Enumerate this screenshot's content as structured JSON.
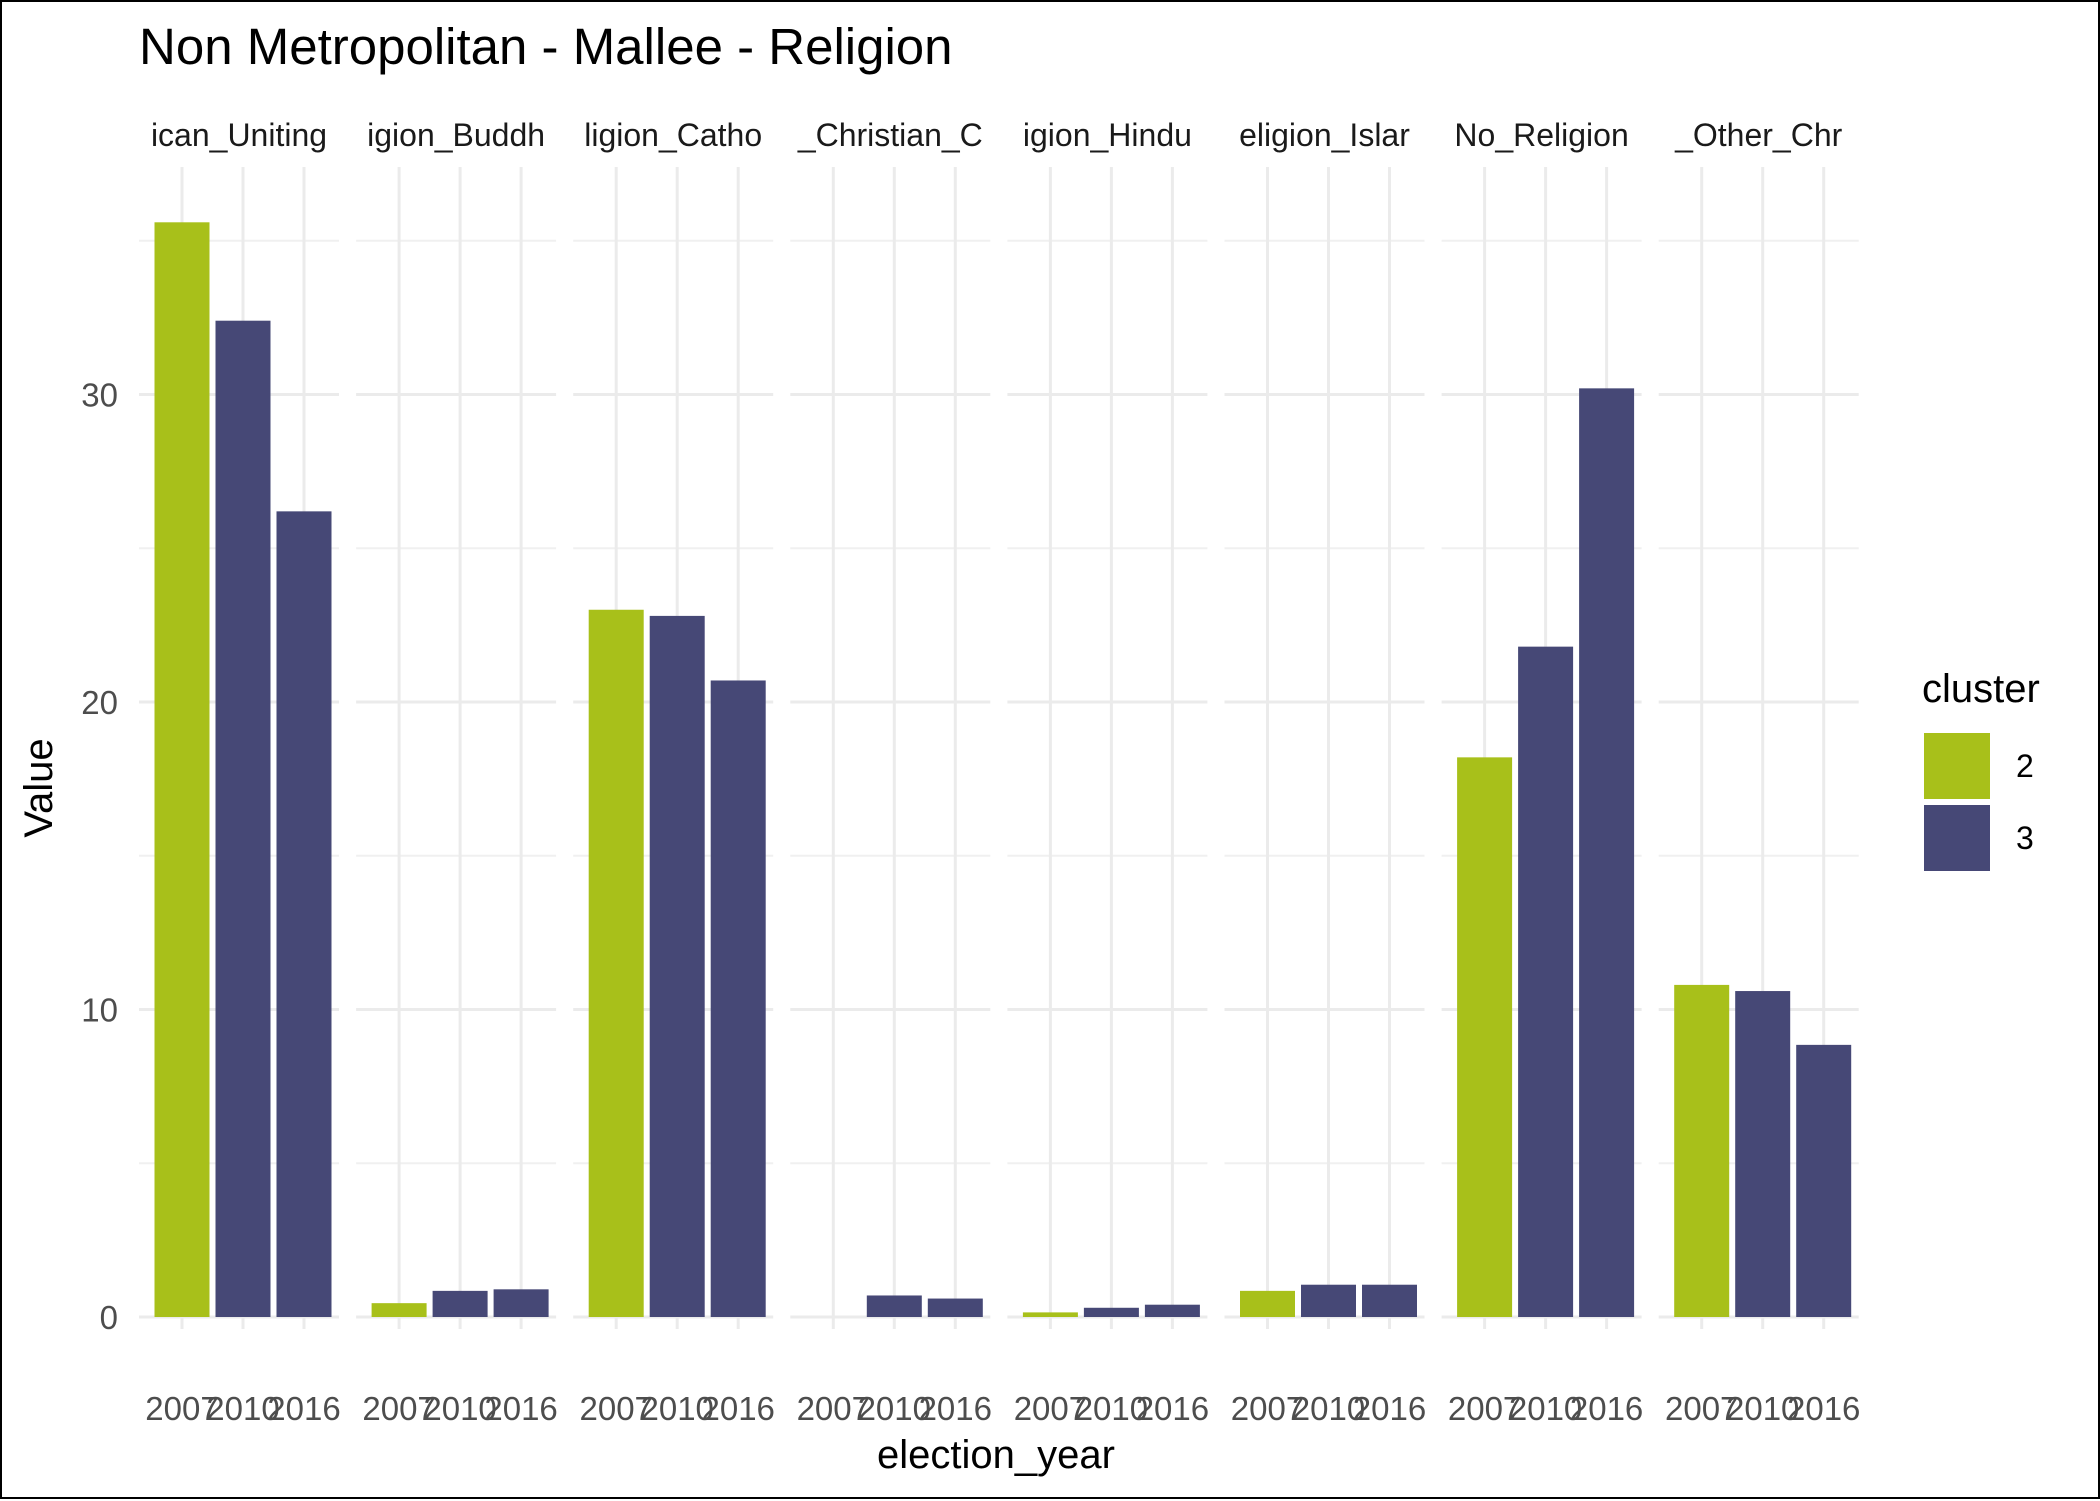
{
  "chart_data": {
    "type": "bar",
    "title": "Non Metropolitan - Mallee - Religion",
    "xlabel": "election_year",
    "ylabel": "Value",
    "ylim": [
      0,
      37.5
    ],
    "yticks": [
      0,
      10,
      20,
      30
    ],
    "grid": true,
    "legend": {
      "title": "cluster",
      "placement": "right",
      "entries": [
        {
          "label": "2",
          "color": "#a8c01a"
        },
        {
          "label": "3",
          "color": "#464876"
        }
      ]
    },
    "categories": [
      "2007",
      "2010",
      "2016"
    ],
    "facets": [
      {
        "label": "ican_Uniting",
        "values": [
          35.6,
          32.4,
          26.2
        ],
        "clusters": [
          "2",
          "3",
          "3"
        ]
      },
      {
        "label": "igion_Buddh",
        "values": [
          0.45,
          0.85,
          0.9
        ],
        "clusters": [
          "2",
          "3",
          "3"
        ]
      },
      {
        "label": "ligion_Catho",
        "values": [
          23.0,
          22.8,
          20.7
        ],
        "clusters": [
          "2",
          "3",
          "3"
        ]
      },
      {
        "label": "_Christian_C",
        "values": [
          0.0,
          0.7,
          0.6
        ],
        "clusters": [
          "2",
          "3",
          "3"
        ]
      },
      {
        "label": "igion_Hindu",
        "values": [
          0.15,
          0.3,
          0.4
        ],
        "clusters": [
          "2",
          "3",
          "3"
        ]
      },
      {
        "label": "eligion_Islar",
        "values": [
          0.85,
          1.05,
          1.05
        ],
        "clusters": [
          "2",
          "3",
          "3"
        ]
      },
      {
        "label": "No_Religion",
        "values": [
          18.2,
          21.8,
          30.2
        ],
        "clusters": [
          "2",
          "3",
          "3"
        ]
      },
      {
        "label": "_Other_Chr",
        "values": [
          10.8,
          10.6,
          8.85
        ],
        "clusters": [
          "2",
          "3",
          "3"
        ]
      }
    ]
  }
}
